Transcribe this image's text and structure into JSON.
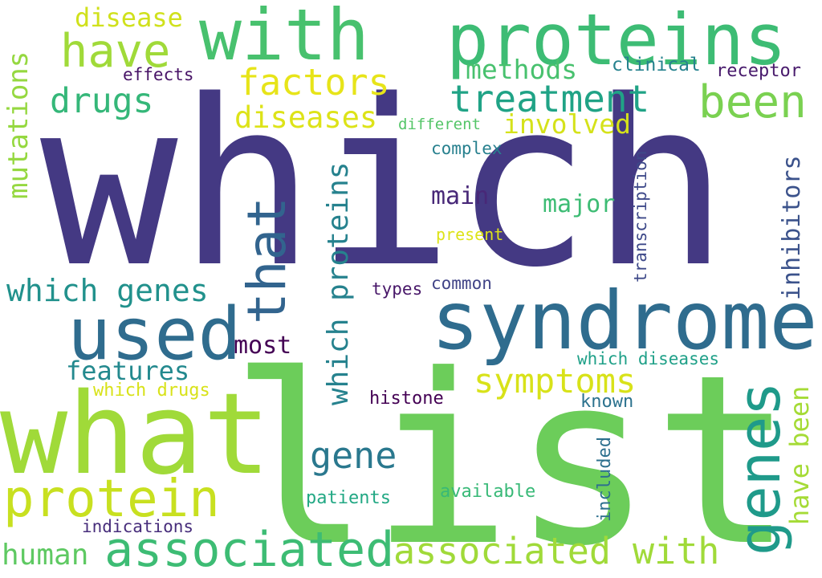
{
  "words": [
    {
      "text": "which",
      "color": "#443983"
    },
    {
      "text": "list",
      "color": "#6ccd5a"
    },
    {
      "text": "what",
      "color": "#a0da39"
    },
    {
      "text": "syndrome",
      "color": "#2f6c8e"
    },
    {
      "text": "proteins",
      "color": "#3dbc74"
    },
    {
      "text": "with",
      "color": "#48c16e"
    },
    {
      "text": "used",
      "color": "#2f6c8e"
    },
    {
      "text": "genes",
      "color": "#1f9a8a"
    },
    {
      "text": "associated",
      "color": "#3dbc74"
    },
    {
      "text": "protein",
      "color": "#c8e020"
    },
    {
      "text": "associated with",
      "color": "#a0da39"
    },
    {
      "text": "that",
      "color": "#32648e"
    },
    {
      "text": "have",
      "color": "#a0da39"
    },
    {
      "text": "been",
      "color": "#7ad151"
    },
    {
      "text": "treatment",
      "color": "#20a386"
    },
    {
      "text": "factors",
      "color": "#e7e419"
    },
    {
      "text": "drugs",
      "color": "#35b779"
    },
    {
      "text": "which proteins",
      "color": "#26828e"
    },
    {
      "text": "symptoms",
      "color": "#d8e219"
    },
    {
      "text": "which genes",
      "color": "#21918c"
    },
    {
      "text": "gene",
      "color": "#2a788e"
    },
    {
      "text": "have been",
      "color": "#a5db36"
    },
    {
      "text": "mutations",
      "color": "#95d840"
    },
    {
      "text": "diseases",
      "color": "#dde318"
    },
    {
      "text": "disease",
      "color": "#d0e11c"
    },
    {
      "text": "methods",
      "color": "#48c16e"
    },
    {
      "text": "involved",
      "color": "#d5e21a"
    },
    {
      "text": "inhibitors",
      "color": "#3b528b"
    },
    {
      "text": "features",
      "color": "#23898e"
    },
    {
      "text": "human",
      "color": "#5ec962"
    },
    {
      "text": "most",
      "color": "#440154"
    },
    {
      "text": "main",
      "color": "#482878"
    },
    {
      "text": "major",
      "color": "#3dbc74"
    },
    {
      "text": "clinical",
      "color": "#26828e"
    },
    {
      "text": "receptor",
      "color": "#481a6c"
    },
    {
      "text": "effects",
      "color": "#481467"
    },
    {
      "text": "different",
      "color": "#54c568"
    },
    {
      "text": "complex",
      "color": "#27808e"
    },
    {
      "text": "present",
      "color": "#dde318"
    },
    {
      "text": "transcription",
      "color": "#3e4989"
    },
    {
      "text": "common",
      "color": "#414487"
    },
    {
      "text": "types",
      "color": "#481769"
    },
    {
      "text": "which diseases",
      "color": "#1fa088"
    },
    {
      "text": "known",
      "color": "#2c728e"
    },
    {
      "text": "histone",
      "color": "#440154"
    },
    {
      "text": "which drugs",
      "color": "#d8e219"
    },
    {
      "text": "included",
      "color": "#2d708e"
    },
    {
      "text": "available",
      "color": "#38b977"
    },
    {
      "text": "patients",
      "color": "#22a884"
    },
    {
      "text": "indications",
      "color": "#472d7b"
    }
  ]
}
